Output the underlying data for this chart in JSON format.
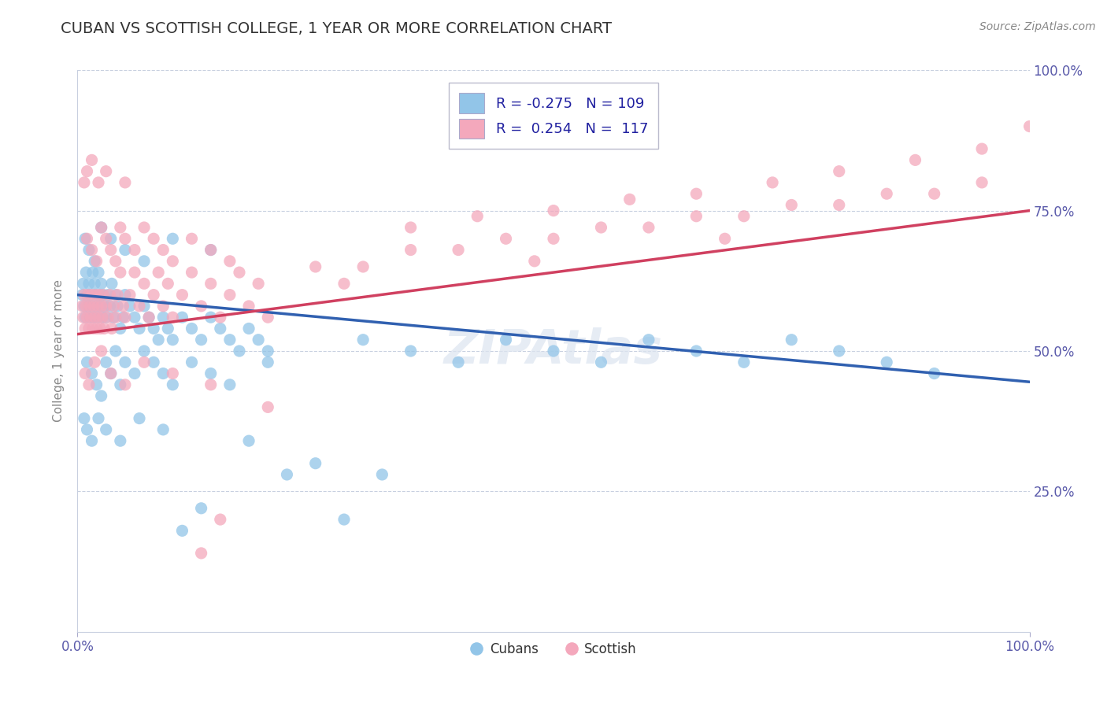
{
  "title": "CUBAN VS SCOTTISH COLLEGE, 1 YEAR OR MORE CORRELATION CHART",
  "source": "Source: ZipAtlas.com",
  "ylabel": "College, 1 year or more",
  "xlim": [
    0.0,
    1.0
  ],
  "ylim": [
    0.0,
    1.0
  ],
  "legend_r_cubans": "-0.275",
  "legend_n_cubans": "109",
  "legend_r_scottish": "0.254",
  "legend_n_scottish": "117",
  "cubans_color": "#92C5E8",
  "scottish_color": "#F4A8BC",
  "cubans_line_color": "#3060B0",
  "scottish_line_color": "#D04060",
  "background_color": "#ffffff",
  "title_fontsize": 14,
  "cubans_x": [
    0.005,
    0.006,
    0.007,
    0.008,
    0.009,
    0.01,
    0.011,
    0.012,
    0.013,
    0.014,
    0.015,
    0.016,
    0.017,
    0.018,
    0.019,
    0.02,
    0.021,
    0.022,
    0.023,
    0.024,
    0.025,
    0.026,
    0.027,
    0.028,
    0.03,
    0.032,
    0.034,
    0.036,
    0.038,
    0.04,
    0.042,
    0.045,
    0.048,
    0.05,
    0.055,
    0.06,
    0.065,
    0.07,
    0.075,
    0.08,
    0.085,
    0.09,
    0.095,
    0.1,
    0.11,
    0.12,
    0.13,
    0.14,
    0.15,
    0.16,
    0.17,
    0.18,
    0.19,
    0.2,
    0.01,
    0.015,
    0.02,
    0.025,
    0.03,
    0.035,
    0.04,
    0.045,
    0.05,
    0.06,
    0.07,
    0.08,
    0.09,
    0.1,
    0.12,
    0.14,
    0.16,
    0.008,
    0.012,
    0.018,
    0.025,
    0.035,
    0.05,
    0.07,
    0.1,
    0.14,
    0.007,
    0.01,
    0.015,
    0.022,
    0.03,
    0.045,
    0.065,
    0.09,
    0.2,
    0.3,
    0.35,
    0.4,
    0.45,
    0.5,
    0.55,
    0.6,
    0.65,
    0.7,
    0.75,
    0.8,
    0.85,
    0.9,
    0.18,
    0.25,
    0.32,
    0.28,
    0.22,
    0.13,
    0.11
  ],
  "cubans_y": [
    0.6,
    0.62,
    0.58,
    0.56,
    0.64,
    0.6,
    0.58,
    0.62,
    0.56,
    0.6,
    0.58,
    0.64,
    0.56,
    0.62,
    0.6,
    0.58,
    0.56,
    0.64,
    0.6,
    0.58,
    0.62,
    0.56,
    0.6,
    0.58,
    0.56,
    0.6,
    0.58,
    0.62,
    0.56,
    0.6,
    0.58,
    0.54,
    0.56,
    0.6,
    0.58,
    0.56,
    0.54,
    0.58,
    0.56,
    0.54,
    0.52,
    0.56,
    0.54,
    0.52,
    0.56,
    0.54,
    0.52,
    0.56,
    0.54,
    0.52,
    0.5,
    0.54,
    0.52,
    0.5,
    0.48,
    0.46,
    0.44,
    0.42,
    0.48,
    0.46,
    0.5,
    0.44,
    0.48,
    0.46,
    0.5,
    0.48,
    0.46,
    0.44,
    0.48,
    0.46,
    0.44,
    0.7,
    0.68,
    0.66,
    0.72,
    0.7,
    0.68,
    0.66,
    0.7,
    0.68,
    0.38,
    0.36,
    0.34,
    0.38,
    0.36,
    0.34,
    0.38,
    0.36,
    0.48,
    0.52,
    0.5,
    0.48,
    0.52,
    0.5,
    0.48,
    0.52,
    0.5,
    0.48,
    0.52,
    0.5,
    0.48,
    0.46,
    0.34,
    0.3,
    0.28,
    0.2,
    0.28,
    0.22,
    0.18
  ],
  "scottish_x": [
    0.005,
    0.006,
    0.007,
    0.008,
    0.009,
    0.01,
    0.011,
    0.012,
    0.013,
    0.014,
    0.015,
    0.016,
    0.017,
    0.018,
    0.019,
    0.02,
    0.021,
    0.022,
    0.023,
    0.024,
    0.025,
    0.026,
    0.027,
    0.028,
    0.03,
    0.032,
    0.034,
    0.036,
    0.038,
    0.04,
    0.042,
    0.045,
    0.048,
    0.05,
    0.055,
    0.06,
    0.065,
    0.07,
    0.075,
    0.08,
    0.085,
    0.09,
    0.095,
    0.1,
    0.11,
    0.12,
    0.13,
    0.14,
    0.15,
    0.16,
    0.17,
    0.18,
    0.19,
    0.2,
    0.01,
    0.015,
    0.02,
    0.025,
    0.03,
    0.035,
    0.04,
    0.045,
    0.05,
    0.06,
    0.07,
    0.08,
    0.09,
    0.1,
    0.12,
    0.14,
    0.16,
    0.008,
    0.012,
    0.018,
    0.025,
    0.035,
    0.05,
    0.07,
    0.1,
    0.14,
    0.007,
    0.01,
    0.015,
    0.022,
    0.03,
    0.05,
    0.25,
    0.35,
    0.45,
    0.55,
    0.65,
    0.75,
    0.85,
    0.95,
    0.3,
    0.4,
    0.5,
    0.6,
    0.7,
    0.8,
    0.9,
    1.0,
    0.35,
    0.5,
    0.65,
    0.8,
    0.95,
    0.42,
    0.58,
    0.73,
    0.88,
    0.28,
    0.48,
    0.68,
    0.2,
    0.15,
    0.13
  ],
  "scottish_y": [
    0.58,
    0.56,
    0.6,
    0.54,
    0.58,
    0.56,
    0.6,
    0.54,
    0.58,
    0.56,
    0.6,
    0.54,
    0.58,
    0.56,
    0.6,
    0.54,
    0.58,
    0.56,
    0.6,
    0.54,
    0.58,
    0.56,
    0.6,
    0.54,
    0.58,
    0.56,
    0.6,
    0.54,
    0.58,
    0.56,
    0.6,
    0.64,
    0.58,
    0.56,
    0.6,
    0.64,
    0.58,
    0.62,
    0.56,
    0.6,
    0.64,
    0.58,
    0.62,
    0.56,
    0.6,
    0.64,
    0.58,
    0.62,
    0.56,
    0.6,
    0.64,
    0.58,
    0.62,
    0.56,
    0.7,
    0.68,
    0.66,
    0.72,
    0.7,
    0.68,
    0.66,
    0.72,
    0.7,
    0.68,
    0.72,
    0.7,
    0.68,
    0.66,
    0.7,
    0.68,
    0.66,
    0.46,
    0.44,
    0.48,
    0.5,
    0.46,
    0.44,
    0.48,
    0.46,
    0.44,
    0.8,
    0.82,
    0.84,
    0.8,
    0.82,
    0.8,
    0.65,
    0.68,
    0.7,
    0.72,
    0.74,
    0.76,
    0.78,
    0.8,
    0.65,
    0.68,
    0.7,
    0.72,
    0.74,
    0.76,
    0.78,
    0.9,
    0.72,
    0.75,
    0.78,
    0.82,
    0.86,
    0.74,
    0.77,
    0.8,
    0.84,
    0.62,
    0.66,
    0.7,
    0.4,
    0.2,
    0.14
  ]
}
